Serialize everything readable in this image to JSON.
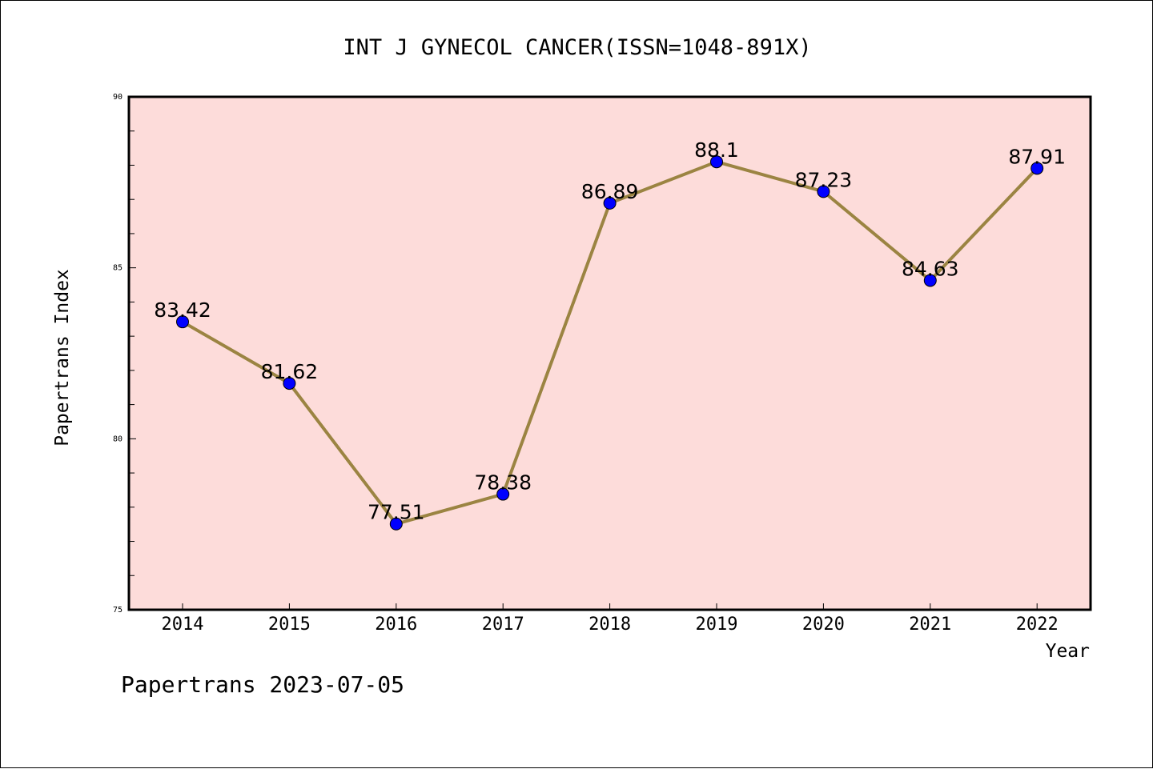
{
  "chart_data": {
    "type": "line",
    "title": "INT J GYNECOL CANCER(ISSN=1048-891X)",
    "xlabel": "Year",
    "ylabel": "Papertrans Index",
    "categories": [
      "2014",
      "2015",
      "2016",
      "2017",
      "2018",
      "2019",
      "2020",
      "2021",
      "2022"
    ],
    "series": [
      {
        "values": [
          83.42,
          81.62,
          77.51,
          78.38,
          86.89,
          88.1,
          87.23,
          84.63,
          87.91
        ]
      }
    ],
    "data_labels": [
      "83.42",
      "81.62",
      "77.51",
      "78.38",
      "86.89",
      "88.1",
      "87.23",
      "84.63",
      "87.91"
    ],
    "ylim": [
      75,
      90
    ],
    "y_ticks": [
      "75",
      "80",
      "85",
      "90"
    ],
    "grid": false,
    "colors": {
      "plot_background": "#fddcda",
      "line": "#9b8442",
      "marker": "#0000ff"
    }
  },
  "footer": "Papertrans 2023-07-05"
}
